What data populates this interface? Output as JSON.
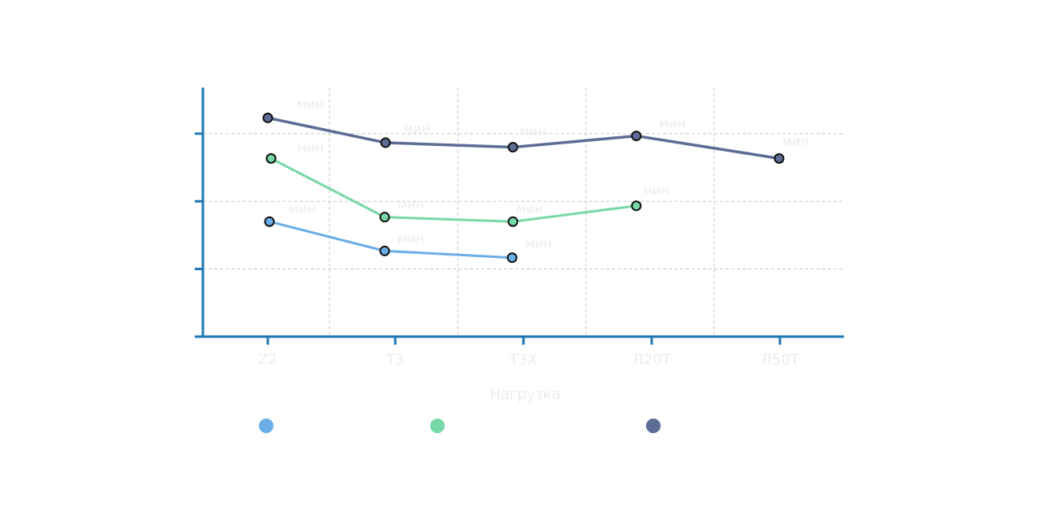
{
  "chart_data": {
    "type": "line",
    "categories": [
      "Z2",
      "Т3",
      "Т3Х",
      "Л20Т",
      "Л50Т"
    ],
    "xlabel": "Нагрузка",
    "ylabel": "",
    "ylim": [
      0,
      100
    ],
    "grid": true,
    "legend_position": "bottom",
    "series": [
      {
        "color": "#6aaee8",
        "values": [
          51,
          38,
          35,
          null,
          null
        ],
        "labels": [
          "мин",
          "мин",
          "мин",
          null,
          null
        ]
      },
      {
        "color": "#77d8a8",
        "values": [
          79,
          53,
          51,
          58,
          null
        ],
        "labels": [
          "мин",
          "мин",
          "мин",
          "мин",
          null
        ]
      },
      {
        "color": "#5c6d96",
        "values": [
          97,
          86,
          84,
          89,
          79
        ],
        "labels": [
          "мин",
          "мин",
          "мин",
          "мин",
          "мин"
        ]
      }
    ]
  }
}
